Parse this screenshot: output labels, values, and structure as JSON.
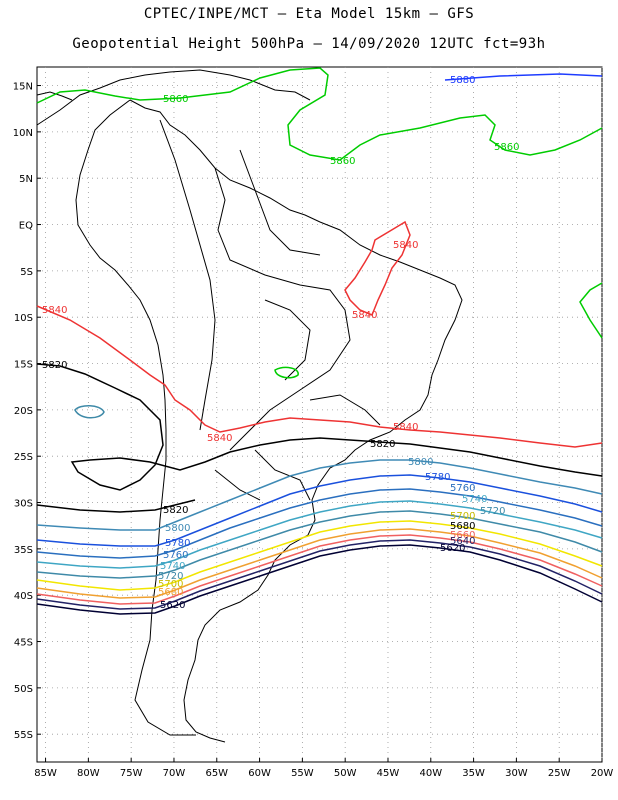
{
  "header": {
    "line1": "CPTEC/INPE/MCT –  Eta Model 15km – GFS",
    "line2": "Geopotential Height 500hPa – 14/09/2020 12UTC fct=93h"
  },
  "axes": {
    "lat_labels": [
      "15N",
      "10N",
      "5N",
      "EQ",
      "5S",
      "10S",
      "15S",
      "20S",
      "25S",
      "30S",
      "35S",
      "40S",
      "45S",
      "50S",
      "55S"
    ],
    "lat_values": [
      15,
      10,
      5,
      0,
      -5,
      -10,
      -15,
      -20,
      -25,
      -30,
      -35,
      -40,
      -45,
      -50,
      -55
    ],
    "lon_labels": [
      "85W",
      "80W",
      "75W",
      "70W",
      "65W",
      "60W",
      "55W",
      "50W",
      "45W",
      "40W",
      "35W",
      "30W",
      "25W",
      "20W"
    ],
    "lon_values": [
      -85,
      -80,
      -75,
      -70,
      -65,
      -60,
      -55,
      -50,
      -45,
      -40,
      -35,
      -30,
      -25,
      -20
    ],
    "lat_range": [
      -58,
      17
    ],
    "lon_range": [
      -86,
      -20
    ],
    "grid": "dotted"
  },
  "contours": [
    {
      "label": "5880",
      "color": "#1e3cff"
    },
    {
      "label": "5860",
      "color": "#00cc00"
    },
    {
      "label": "5840",
      "color": "#ee3333"
    },
    {
      "label": "5820",
      "color": "#000000"
    },
    {
      "label": "5800",
      "color": "#3f8ab5"
    },
    {
      "label": "5780",
      "color": "#1a50dd"
    },
    {
      "label": "5760",
      "color": "#2a6fbf"
    },
    {
      "label": "5740",
      "color": "#3fa6c4"
    },
    {
      "label": "5720",
      "color": "#3f8aa8"
    },
    {
      "label": "5700",
      "color": "#f2e600"
    },
    {
      "label": "5680",
      "color": "#f0a030"
    },
    {
      "label": "5660",
      "color": "#f06060"
    },
    {
      "label": "5640",
      "color": "#222266"
    },
    {
      "label": "5620",
      "color": "#000033"
    }
  ]
}
